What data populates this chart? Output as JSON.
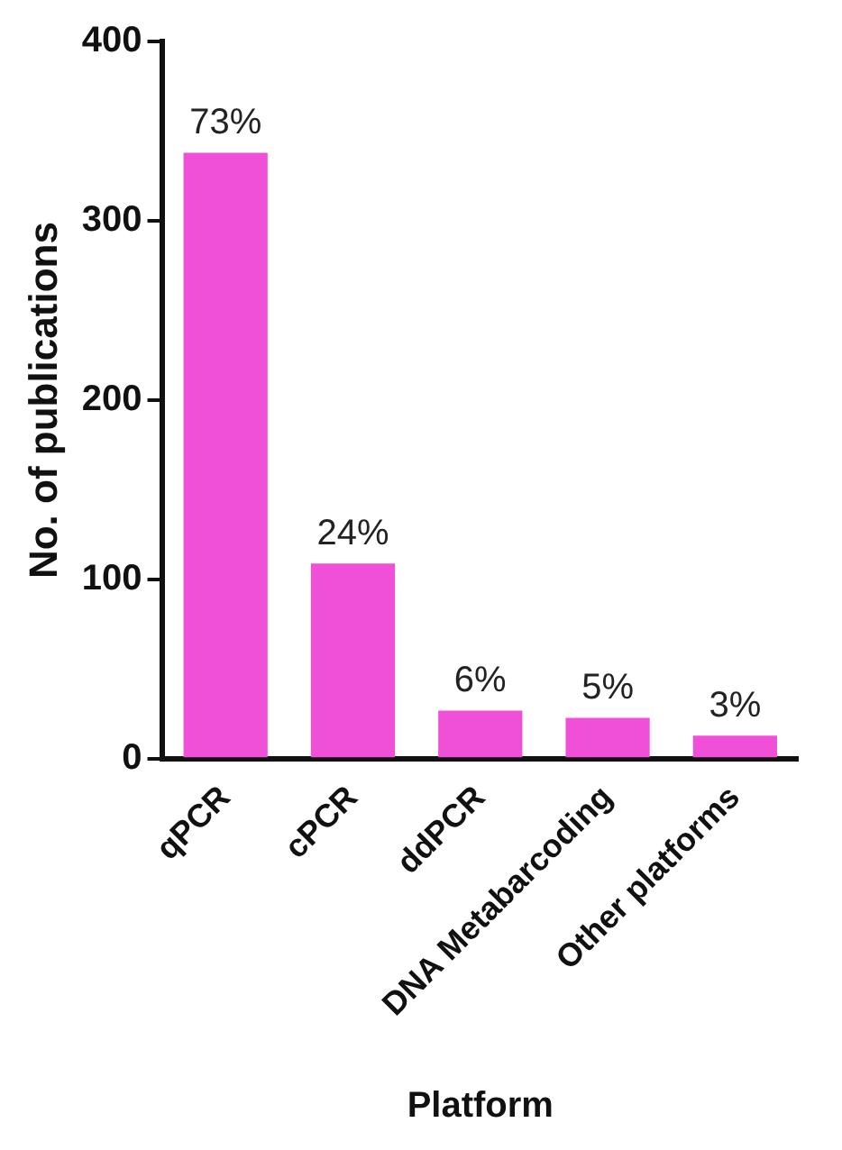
{
  "chart_data": {
    "type": "bar",
    "xlabel": "Platform",
    "ylabel": "No. of publications",
    "categories": [
      "qPCR",
      "cPCR",
      "ddPCR",
      "DNA Metabarcoding",
      "Other platforms"
    ],
    "values": [
      338,
      109,
      27,
      23,
      13
    ],
    "annotations": [
      {
        "text": "73%",
        "x": "qPCR",
        "y": 338
      },
      {
        "text": "24%",
        "x": "cPCR",
        "y": 109
      },
      {
        "text": "6%",
        "x": "ddPCR",
        "y": 27
      },
      {
        "text": "5%",
        "x": "DNA Metabarcoding",
        "y": 23
      },
      {
        "text": "3%",
        "x": "Other platforms",
        "y": 13
      }
    ],
    "color": "#f050d8",
    "ylim": [
      0,
      400
    ],
    "yticks": [
      0,
      100,
      200,
      300,
      400
    ],
    "grid": false,
    "legend": false
  }
}
